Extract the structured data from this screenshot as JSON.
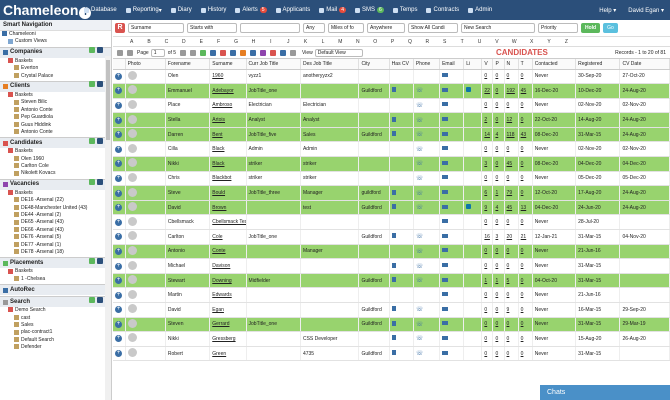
{
  "topbar": {
    "logo": "Chameleon",
    "logo_i": "i",
    "nav": [
      {
        "label": "Database"
      },
      {
        "label": "Reporting",
        "caret": "▾"
      },
      {
        "label": "Diary"
      },
      {
        "label": "History"
      },
      {
        "label": "Alerts",
        "badge": "5"
      },
      {
        "label": "Applicants"
      },
      {
        "label": "Mail",
        "badge": "4"
      },
      {
        "label": "SMS",
        "badge": "6"
      },
      {
        "label": "Temps"
      },
      {
        "label": "Contracts"
      },
      {
        "label": "Admin"
      }
    ],
    "help": "Help ▾",
    "user": "David Egan ▾"
  },
  "sidebar": {
    "title": "Smart Navigation",
    "root": "Chameleoni",
    "custom_views": "Custom Views",
    "sections": [
      {
        "name": "Companies",
        "items": [
          "Baskets",
          "Everton",
          "Crystal Palace"
        ]
      },
      {
        "name": "Clients",
        "items": [
          "Baskets",
          "Steven Bilic",
          "Antonio Conte",
          "Pep Guardiola",
          "Guus Hiddink",
          "Antonio Conte"
        ]
      },
      {
        "name": "Candidates",
        "items": [
          "Baskets",
          "Olen 1960",
          "Carlton Cole",
          "Nikolett Kovacs"
        ]
      },
      {
        "name": "Vacancies",
        "items": [
          "Baskets",
          "DE16 -Arsenal (22)",
          "DE48-Manchester United (43)",
          "DE44 -Arsenal (2)",
          "DE65 -Arsenal (43)",
          "DE66 -Arsenal (43)",
          "DE76 -Arsenal (5)",
          "DE77 -Arsenal (1)",
          "DE78 -Arsenal (18)"
        ]
      },
      {
        "name": "Placements",
        "items": [
          "Baskets",
          "1 -Chelsea"
        ]
      },
      {
        "name": "AutoRec",
        "items": []
      },
      {
        "name": "Search",
        "items": [
          "Demo Search",
          "cast",
          "Sales",
          "plac-contract1",
          "Default Search",
          "Defender"
        ]
      }
    ]
  },
  "filters": {
    "r": "R",
    "field": "Surname",
    "mode": "Starts with",
    "any": "Any",
    "miles": "Miles of fo",
    "anywhere": "Anywhere",
    "show": "Show All Candi",
    "search": "New Search",
    "priority": "Priority",
    "hold": "Hold",
    "go": "Go"
  },
  "alphabet": [
    "A",
    "B",
    "C",
    "D",
    "E",
    "F",
    "G",
    "H",
    "I",
    "J",
    "K",
    "L",
    "M",
    "N",
    "O",
    "P",
    "Q",
    "R",
    "S",
    "T",
    "U",
    "V",
    "W",
    "X",
    "Y",
    "Z"
  ],
  "toolbar": {
    "page_label": "Page",
    "page": "1",
    "of": "of 5",
    "view_label": "View",
    "view": "Default View",
    "title": "CANDIDATES",
    "records": "Records - 1 to 20 of 81"
  },
  "columns": [
    "",
    "Photo",
    "Forename",
    "Surname",
    "Curr Job Title",
    "Des Job Title",
    "City",
    "Has CV",
    "Phone",
    "Email",
    "Li",
    "V",
    "P",
    "N",
    "T",
    "Contacted",
    "Registered",
    "CV Date"
  ],
  "rows": [
    {
      "fn": "Olen",
      "sn": "1960",
      "cur": "vyzz1",
      "des": "anotheryyzx2",
      "city": "",
      "cv": false,
      "phone": false,
      "email": true,
      "li": false,
      "v": "0",
      "p": "0",
      "n": "0",
      "t": "0",
      "con": "Never",
      "reg": "30-Sep-20",
      "cvd": "27-Oct-20",
      "g": false
    },
    {
      "fn": "Emmanuel",
      "sn": "Adebayor",
      "cur": "JobTitle_one",
      "des": "",
      "city": "Guildford",
      "cv": true,
      "phone": true,
      "email": true,
      "li": true,
      "v": "22",
      "p": "0",
      "n": "192",
      "t": "45",
      "con": "16-Dec-20",
      "reg": "10-Dec-20",
      "cvd": "24-Aug-20",
      "g": true
    },
    {
      "fn": "Place",
      "sn": "Ambroso",
      "cur": "Electrician",
      "des": "Electrician",
      "city": "",
      "cv": false,
      "phone": true,
      "email": true,
      "li": false,
      "v": "0",
      "p": "0",
      "n": "0",
      "t": "0",
      "con": "Never",
      "reg": "02-Nov-20",
      "cvd": "02-Nov-20",
      "g": false
    },
    {
      "fn": "Stella",
      "sn": "Artois",
      "cur": "Analyst",
      "des": "Analyst",
      "city": "",
      "cv": true,
      "phone": true,
      "email": true,
      "li": false,
      "v": "2",
      "p": "0",
      "n": "12",
      "t": "0",
      "con": "22-Oct-20",
      "reg": "14-Aug-20",
      "cvd": "24-Aug-20",
      "g": true
    },
    {
      "fn": "Darren",
      "sn": "Bent",
      "cur": "JobTitle_five",
      "des": "Sales",
      "city": "Guildford",
      "cv": true,
      "phone": true,
      "email": true,
      "li": false,
      "v": "14",
      "p": "4",
      "n": "118",
      "t": "43",
      "con": "08-Dec-20",
      "reg": "31-Mar-15",
      "cvd": "24-Aug-20",
      "g": true
    },
    {
      "fn": "Cilla",
      "sn": "Black",
      "cur": "Admin",
      "des": "Admin",
      "city": "",
      "cv": false,
      "phone": true,
      "email": true,
      "li": false,
      "v": "0",
      "p": "0",
      "n": "0",
      "t": "0",
      "con": "Never",
      "reg": "02-Nov-20",
      "cvd": "02-Nov-20",
      "g": false
    },
    {
      "fn": "Nikki",
      "sn": "Black",
      "cur": "striker",
      "des": "striker",
      "city": "",
      "cv": false,
      "phone": true,
      "email": true,
      "li": false,
      "v": "3",
      "p": "0",
      "n": "45",
      "t": "0",
      "con": "08-Dec-20",
      "reg": "04-Dec-20",
      "cvd": "04-Dec-20",
      "g": true
    },
    {
      "fn": "Chris",
      "sn": "Blackbot",
      "cur": "striker",
      "des": "striker",
      "city": "",
      "cv": false,
      "phone": true,
      "email": true,
      "li": false,
      "v": "0",
      "p": "0",
      "n": "0",
      "t": "0",
      "con": "Never",
      "reg": "05-Dec-20",
      "cvd": "05-Dec-20",
      "g": false
    },
    {
      "fn": "Steve",
      "sn": "Bould",
      "cur": "JobTitle_three",
      "des": "Manager",
      "city": "guildford",
      "cv": true,
      "phone": true,
      "email": true,
      "li": false,
      "v": "6",
      "p": "1",
      "n": "79",
      "t": "0",
      "con": "12-Oct-20",
      "reg": "17-Aug-20",
      "cvd": "24-Aug-20",
      "g": true
    },
    {
      "fn": "David",
      "sn": "Brown",
      "cur": "",
      "des": "test",
      "city": "Guildford",
      "cv": true,
      "phone": true,
      "email": true,
      "li": true,
      "v": "9",
      "p": "4",
      "n": "45",
      "t": "13",
      "con": "04-Dec-20",
      "reg": "24-Jun-20",
      "cvd": "24-Aug-20",
      "g": true
    },
    {
      "fn": "Cbellsmack",
      "sn": "Cbellsmack Test Candidate",
      "cur": "",
      "des": "",
      "city": "",
      "cv": false,
      "phone": false,
      "email": true,
      "li": false,
      "v": "0",
      "p": "0",
      "n": "0",
      "t": "0",
      "con": "Never",
      "reg": "28-Jul-20",
      "cvd": "",
      "g": false
    },
    {
      "fn": "Carlton",
      "sn": "Cole",
      "cur": "JobTitle_one",
      "des": "",
      "city": "Guildford",
      "cv": true,
      "phone": true,
      "email": true,
      "li": false,
      "v": "16",
      "p": "3",
      "n": "20",
      "t": "21",
      "con": "12-Jan-21",
      "reg": "31-Mar-15",
      "cvd": "04-Nov-20",
      "g": false
    },
    {
      "fn": "Antonio",
      "sn": "Conte",
      "cur": "",
      "des": "Manager",
      "city": "",
      "cv": false,
      "phone": true,
      "email": true,
      "li": false,
      "v": "0",
      "p": "0",
      "n": "0",
      "t": "0",
      "con": "Never",
      "reg": "21-Jun-16",
      "cvd": "",
      "g": true
    },
    {
      "fn": "Michael",
      "sn": "Davison",
      "cur": "",
      "des": "",
      "city": "",
      "cv": true,
      "phone": true,
      "email": true,
      "li": false,
      "v": "0",
      "p": "0",
      "n": "0",
      "t": "0",
      "con": "Never",
      "reg": "31-Mar-15",
      "cvd": "",
      "g": false
    },
    {
      "fn": "Stewart",
      "sn": "Downing",
      "cur": "Midfielder",
      "des": "",
      "city": "Guildford",
      "cv": true,
      "phone": true,
      "email": true,
      "li": false,
      "v": "1",
      "p": "1",
      "n": "5",
      "t": "0",
      "con": "04-Oct-20",
      "reg": "31-Mar-15",
      "cvd": "",
      "g": true
    },
    {
      "fn": "Martin",
      "sn": "Edwards",
      "cur": "",
      "des": "",
      "city": "",
      "cv": false,
      "phone": false,
      "email": true,
      "li": false,
      "v": "0",
      "p": "0",
      "n": "0",
      "t": "0",
      "con": "Never",
      "reg": "21-Jun-16",
      "cvd": "",
      "g": false
    },
    {
      "fn": "David",
      "sn": "Egan",
      "cur": "",
      "des": "",
      "city": "Guildford",
      "cv": true,
      "phone": true,
      "email": true,
      "li": false,
      "v": "0",
      "p": "0",
      "n": "9",
      "t": "0",
      "con": "Never",
      "reg": "16-Mar-15",
      "cvd": "29-Sep-20",
      "g": false
    },
    {
      "fn": "Steven",
      "sn": "Gerrard",
      "cur": "JobTitle_one",
      "des": "",
      "city": "Guildford",
      "cv": true,
      "phone": true,
      "email": true,
      "li": false,
      "v": "0",
      "p": "0",
      "n": "0",
      "t": "0",
      "con": "Never",
      "reg": "31-Mar-15",
      "cvd": "29-Mar-19",
      "g": true
    },
    {
      "fn": "Nikki",
      "sn": "Gressberg",
      "cur": "",
      "des": "CSS Developer",
      "city": "",
      "cv": true,
      "phone": true,
      "email": true,
      "li": false,
      "v": "0",
      "p": "0",
      "n": "0",
      "t": "0",
      "con": "Never",
      "reg": "15-Aug-20",
      "cvd": "26-Aug-20",
      "g": false
    },
    {
      "fn": "Robert",
      "sn": "Green",
      "cur": "",
      "des": "4735",
      "city": "Guildford",
      "cv": true,
      "phone": true,
      "email": true,
      "li": false,
      "v": "0",
      "p": "0",
      "n": "0",
      "t": "0",
      "con": "Never",
      "reg": "31-Mar-15",
      "cvd": "",
      "g": false
    }
  ],
  "chats": "Chats"
}
